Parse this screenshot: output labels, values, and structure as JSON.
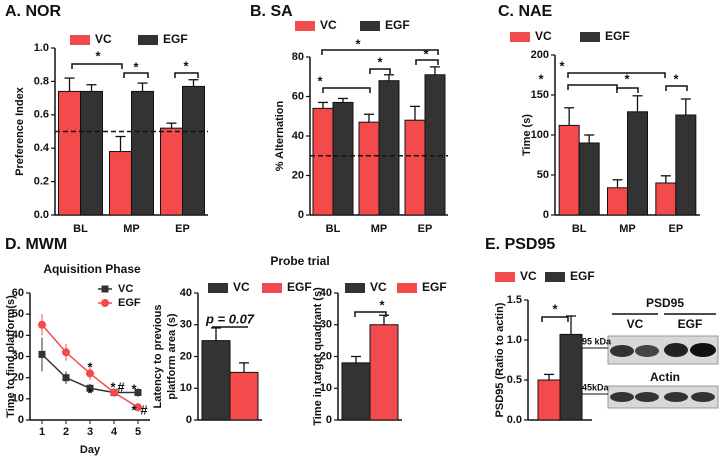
{
  "chart_data": [
    {
      "type": "bar",
      "panel": "A. NOR",
      "categories": [
        "BL",
        "MP",
        "EP"
      ],
      "series": [
        {
          "name": "VC",
          "color": "#f34b4b",
          "values": [
            0.74,
            0.38,
            0.52
          ],
          "errors": [
            0.08,
            0.09,
            0.03
          ]
        },
        {
          "name": "EGF",
          "color": "#333333",
          "values": [
            0.74,
            0.74,
            0.77
          ],
          "errors": [
            0.04,
            0.05,
            0.04
          ]
        }
      ],
      "y_label": "Preference Index",
      "ylim": [
        0,
        1
      ],
      "yticks": [
        {
          "value": 0,
          "label": "0.0"
        },
        0.2,
        0.4,
        0.6,
        0.8,
        {
          "value": 1,
          "label": "1.0"
        }
      ],
      "reference_line": 0.5,
      "annotations": [
        "*",
        "*",
        "*"
      ]
    },
    {
      "type": "bar",
      "panel": "B. SA",
      "categories": [
        "BL",
        "MP",
        "EP"
      ],
      "series": [
        {
          "name": "VC",
          "color": "#f34b4b",
          "values": [
            54,
            47,
            48
          ],
          "errors": [
            3,
            4,
            7
          ]
        },
        {
          "name": "EGF",
          "color": "#333333",
          "values": [
            57,
            68,
            71
          ],
          "errors": [
            2,
            3,
            4
          ]
        }
      ],
      "y_label": "% Alternation",
      "ylim": [
        0,
        80
      ],
      "yticks": [
        0,
        20,
        40,
        60,
        80
      ],
      "reference_line": 30,
      "annotations": [
        "*",
        "*",
        "*",
        "*"
      ]
    },
    {
      "type": "bar",
      "panel": "C. NAE",
      "categories": [
        "BL",
        "MP",
        "EP"
      ],
      "series": [
        {
          "name": "VC",
          "color": "#f34b4b",
          "values": [
            112,
            34,
            40
          ],
          "errors": [
            22,
            10,
            9
          ]
        },
        {
          "name": "EGF",
          "color": "#333333",
          "values": [
            90,
            129,
            125
          ],
          "errors": [
            10,
            20,
            20
          ]
        }
      ],
      "y_label": "Time (s)",
      "ylim": [
        0,
        200
      ],
      "yticks": [
        0,
        50,
        100,
        150,
        200
      ],
      "annotations": [
        "*",
        "*",
        "*",
        "*"
      ]
    },
    {
      "type": "line",
      "panel": "D. MWM",
      "title": "Aquisition Phase",
      "x": [
        1,
        2,
        3,
        4,
        5
      ],
      "series": [
        {
          "name": "VC",
          "color": "#333333",
          "marker": "square",
          "values": [
            31,
            20,
            15,
            13,
            13
          ],
          "errors": [
            8,
            3,
            2,
            2,
            2
          ]
        },
        {
          "name": "EGF",
          "color": "#f34b4b",
          "marker": "circle",
          "values": [
            45,
            32,
            22,
            13,
            6
          ],
          "errors": [
            5,
            4,
            3,
            2,
            2
          ]
        }
      ],
      "x_label": "Day",
      "y_label": "Time to find platform(s)",
      "xlim": [
        0.5,
        5.5
      ],
      "xticks": [
        1,
        2,
        3,
        4,
        5
      ],
      "ylim": [
        0,
        60
      ],
      "yticks": [
        0,
        10,
        20,
        30,
        40,
        50,
        60
      ],
      "annotations": [
        "*",
        "*",
        "*",
        "#",
        "*",
        "*",
        "#"
      ]
    },
    {
      "type": "bar",
      "title": "Probe trial",
      "series": [
        {
          "name": "VC",
          "color": "#333333",
          "values": [
            25
          ],
          "errors": [
            4
          ]
        },
        {
          "name": "EGF",
          "color": "#f34b4b",
          "values": [
            15
          ],
          "errors": [
            3
          ]
        }
      ],
      "ylabel_lines": [
        "Latency to previous",
        "platform area (s)"
      ],
      "ylim": [
        0,
        40
      ],
      "yticks": [
        0,
        10,
        20,
        30,
        40
      ],
      "annotations": [
        "p = 0.07"
      ]
    },
    {
      "type": "bar",
      "series": [
        {
          "name": "VC",
          "color": "#333333",
          "values": [
            18
          ],
          "errors": [
            2
          ]
        },
        {
          "name": "EGF",
          "color": "#f34b4b",
          "values": [
            30
          ],
          "errors": [
            3
          ]
        }
      ],
      "y_label": "Time in target quadrant (s)",
      "ylim": [
        0,
        40
      ],
      "yticks": [
        0,
        10,
        20,
        30,
        40
      ],
      "annotations": [
        "*"
      ]
    },
    {
      "type": "bar",
      "panel": "E. PSD95",
      "series": [
        {
          "name": "VC",
          "color": "#f34b4b",
          "values": [
            0.5
          ],
          "errors": [
            0.07
          ]
        },
        {
          "name": "EGF",
          "color": "#333333",
          "values": [
            1.07
          ],
          "errors": [
            0.23
          ]
        }
      ],
      "y_label": "PSD95 (Ratio to actin)",
      "ylim": [
        0,
        1.5
      ],
      "yticks": [
        {
          "value": 0,
          "label": "0.0"
        },
        0.5,
        {
          "value": 1,
          "label": "1.0"
        },
        1.5
      ],
      "annotations": [
        "*"
      ]
    }
  ],
  "blot": {
    "title": "PSD95",
    "groups": [
      "VC",
      "EGF"
    ],
    "markers": [
      "95 kDa",
      "45kDa"
    ],
    "loading_control": "Actin"
  }
}
